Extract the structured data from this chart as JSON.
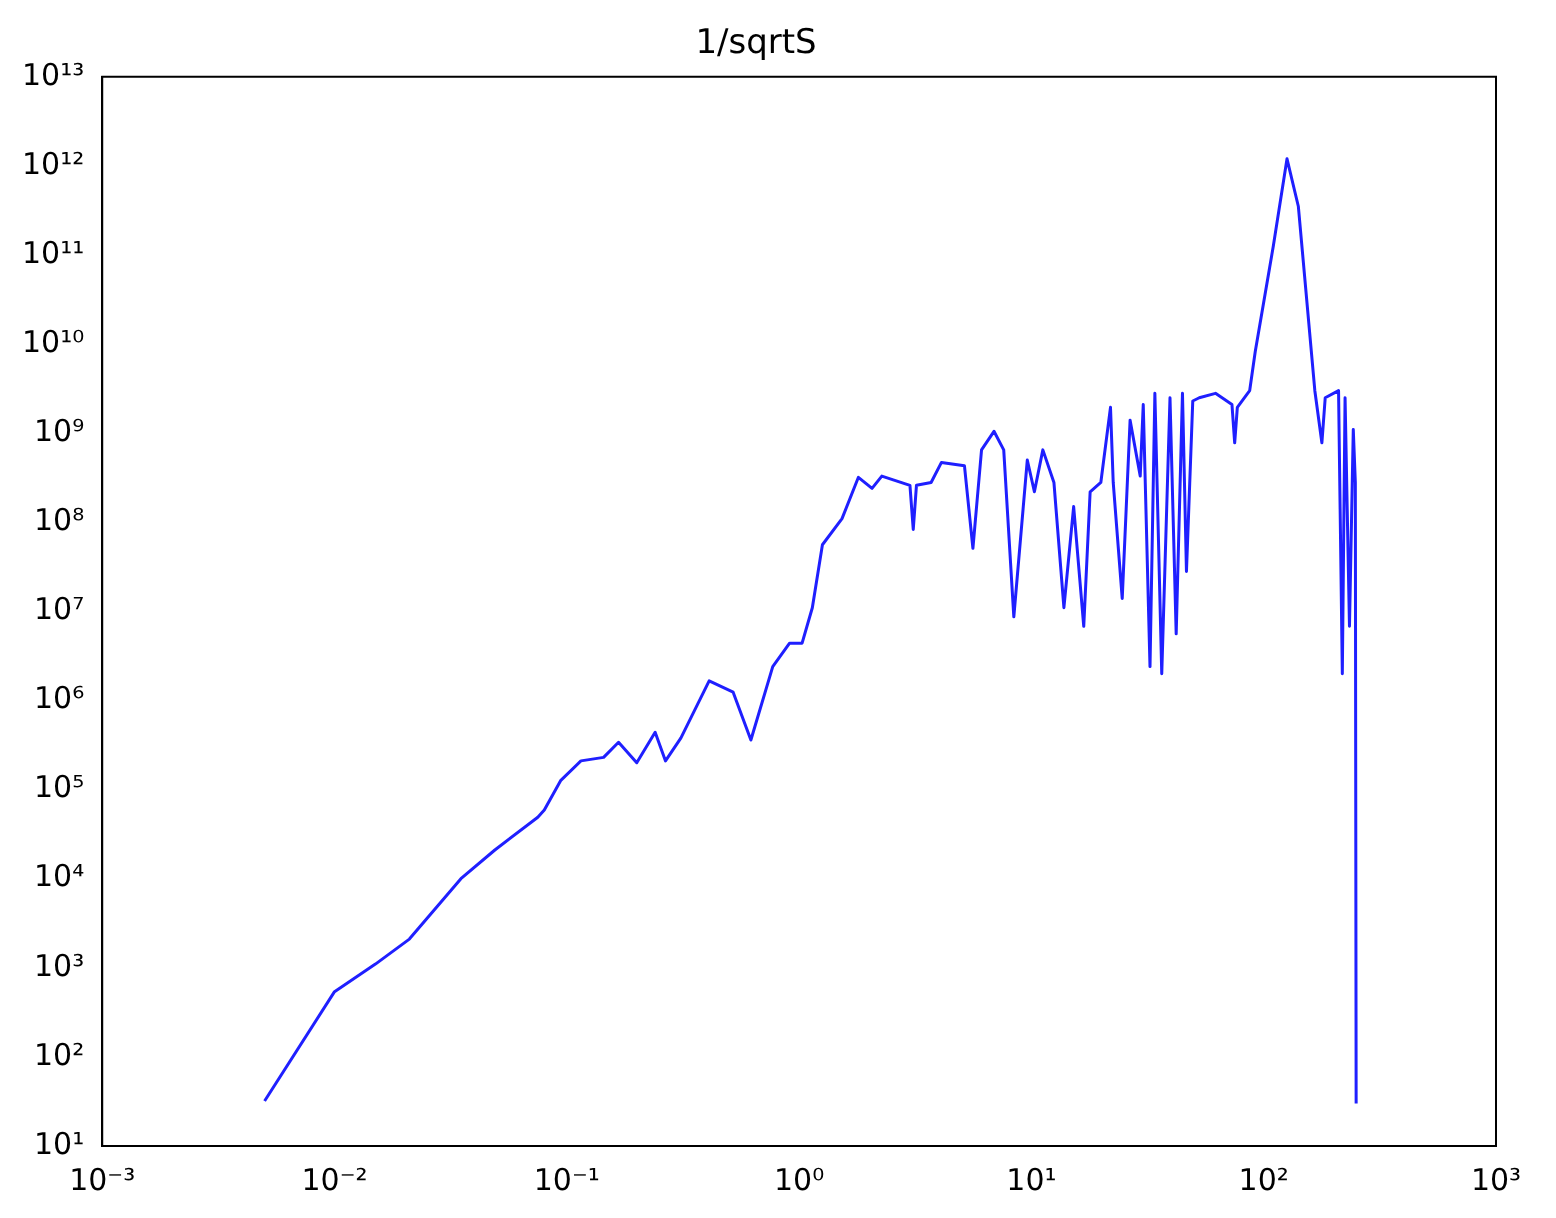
{
  "chart_data": {
    "type": "line",
    "title": "1/sqrtS",
    "x": [
      0.005,
      0.01,
      0.015,
      0.021,
      0.035,
      0.049,
      0.075,
      0.08,
      0.094,
      0.115,
      0.144,
      0.167,
      0.2,
      0.24,
      0.266,
      0.31,
      0.41,
      0.52,
      0.62,
      0.77,
      0.91,
      1.03,
      1.14,
      1.26,
      1.53,
      1.8,
      2.06,
      2.27,
      3.0,
      3.1,
      3.2,
      3.7,
      4.1,
      5.15,
      5.6,
      6.1,
      6.9,
      7.6,
      8.4,
      9.6,
      10.3,
      11.2,
      12.5,
      13.8,
      15.2,
      16.8,
      17.9,
      19.9,
      21.9,
      22.5,
      24.6,
      26.6,
      29.4,
      30.3,
      32.4,
      34,
      36.4,
      39.5,
      42,
      44.7,
      46.5,
      49.5,
      52.8,
      62,
      73,
      75,
      77,
      87,
      92,
      110,
      126,
      141,
      166,
      178,
      184,
      210,
      218,
      224,
      234,
      243,
      248,
      250
    ],
    "series": [
      {
        "color": "#1f1fff",
        "values": [
          32,
          540,
          1100,
          2100,
          10000,
          21000,
          49000,
          59000,
          126000,
          210000,
          230000,
          340000,
          200000,
          440000,
          210000,
          380000,
          1660000,
          1240000,
          360000,
          2400000,
          4400000,
          4400000,
          11000000,
          56000000,
          110000000,
          320000000,
          240000000,
          330000000,
          260000000,
          83000000,
          260000000,
          280000000,
          470000000,
          430000000,
          51000000,
          650000000,
          1050000000,
          650000000,
          8700000,
          500000000,
          220000000,
          650000000,
          280000000,
          11000000,
          150000000,
          6800000,
          220000000,
          280000000,
          1950000000,
          280000000,
          14000000,
          1400000000,
          330000000,
          2100000000,
          2400000,
          2800000000,
          2000000,
          2500000000,
          5600000,
          2800000000,
          28000000,
          2300000000,
          2500000000,
          2800000000,
          2100000000,
          780000000,
          1950000000,
          3000000000,
          8300000000,
          126000000000,
          1200000000000,
          350000000000,
          3000000000,
          780000000,
          2500000000,
          3000000000,
          2000000,
          2500000000,
          6800000,
          1100000000,
          280000000,
          30
        ]
      }
    ],
    "log": "xy",
    "marker": "none",
    "line_style": "solid",
    "grid": false,
    "legend": false,
    "xlim": [
      0.001,
      1000
    ],
    "ylim": [
      10,
      10000000000000
    ],
    "xticks": [
      {
        "value": 0.001,
        "label": "10⁻³"
      },
      {
        "value": 0.01,
        "label": "10⁻²"
      },
      {
        "value": 0.1,
        "label": "10⁻¹"
      },
      {
        "value": 1,
        "label": "10⁰"
      },
      {
        "value": 10,
        "label": "10¹"
      },
      {
        "value": 100,
        "label": "10²"
      },
      {
        "value": 1000,
        "label": "10³"
      }
    ],
    "yticks": [
      {
        "value": 10,
        "label": "10¹"
      },
      {
        "value": 100,
        "label": "10²"
      },
      {
        "value": 1000,
        "label": "10³"
      },
      {
        "value": 10000,
        "label": "10⁴"
      },
      {
        "value": 100000,
        "label": "10⁵"
      },
      {
        "value": 1000000,
        "label": "10⁶"
      },
      {
        "value": 10000000,
        "label": "10⁷"
      },
      {
        "value": 100000000,
        "label": "10⁸"
      },
      {
        "value": 1000000000,
        "label": "10⁹"
      },
      {
        "value": 10000000000,
        "label": "10¹⁰"
      },
      {
        "value": 100000000000,
        "label": "10¹¹"
      },
      {
        "value": 1000000000000,
        "label": "10¹²"
      },
      {
        "value": 10000000000000,
        "label": "10¹³"
      }
    ]
  }
}
